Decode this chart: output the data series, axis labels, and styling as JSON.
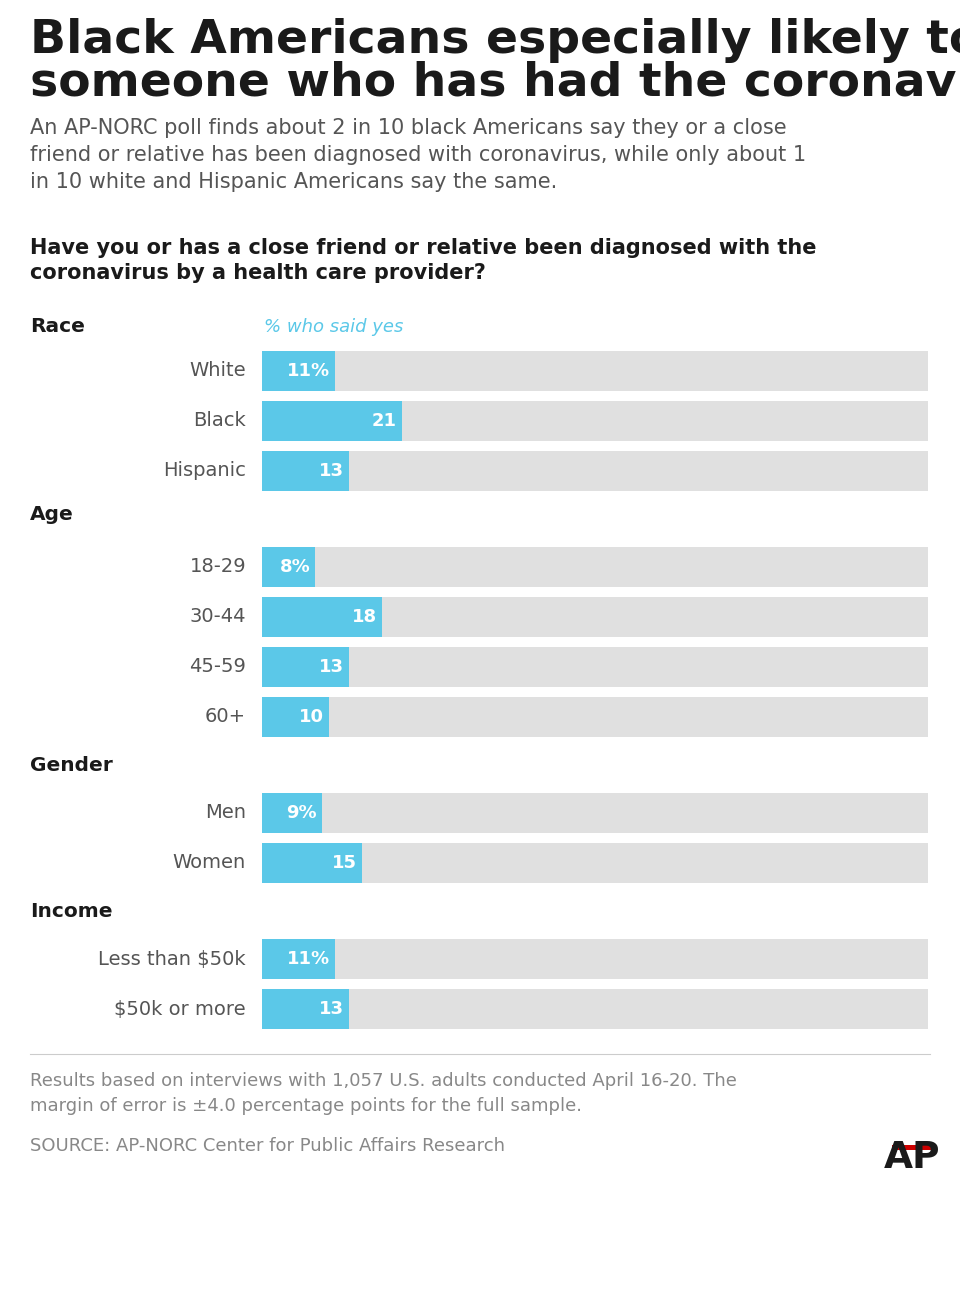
{
  "title_line1": "Black Americans especially likely to know",
  "title_line2": "someone who has had the coronavirus",
  "subtitle": "An AP-NORC poll finds about 2 in 10 black Americans say they or a close\nfriend or relative has been diagnosed with coronavirus, while only about 1\nin 10 white and Hispanic Americans say the same.",
  "question_line1": "Have you or has a close friend or relative been diagnosed with the",
  "question_line2": "coronavirus by a health care provider?",
  "col_header": "% who said yes",
  "categories": [
    "White",
    "Black",
    "Hispanic",
    "18-29",
    "30-44",
    "45-59",
    "60+",
    "Men",
    "Women",
    "Less than $50k",
    "$50k or more"
  ],
  "values": [
    11,
    21,
    13,
    8,
    18,
    13,
    10,
    9,
    15,
    11,
    13
  ],
  "labels": [
    "11%",
    "21",
    "13",
    "8%",
    "18",
    "13",
    "10",
    "9%",
    "15",
    "11%",
    "13"
  ],
  "group_labels": [
    "Race",
    "Age",
    "Gender",
    "Income"
  ],
  "bar_color": "#5bc8e8",
  "bar_bg_color": "#e0e0e0",
  "title_color": "#1a1a1a",
  "subtitle_color": "#555555",
  "question_color": "#1a1a1a",
  "group_label_color": "#1a1a1a",
  "cat_label_color": "#555555",
  "col_header_color": "#5bc8e8",
  "footer_color": "#888888",
  "source_color": "#888888",
  "ap_color": "#1a1a1a",
  "ap_line_color": "#cc0000",
  "footer": "Results based on interviews with 1,057 U.S. adults conducted April 16-20. The\nmargin of error is ±4.0 percentage points for the full sample.",
  "source": "SOURCE: AP-NORC Center for Public Affairs Research"
}
